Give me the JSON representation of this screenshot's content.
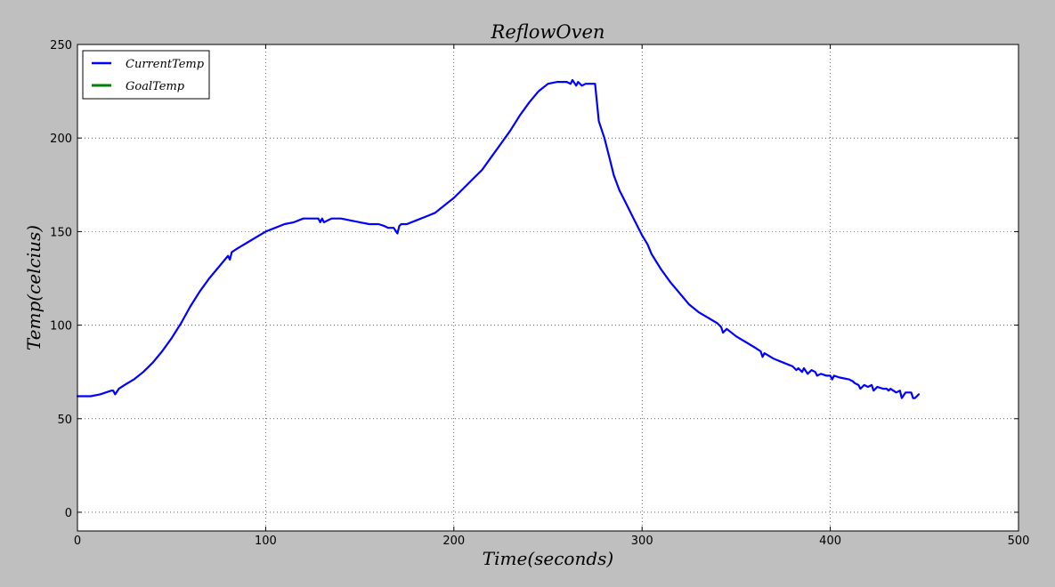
{
  "chart_data": {
    "type": "line",
    "title": "ReflowOven",
    "xlabel": "Time(seconds)",
    "ylabel": "Temp(celcius)",
    "xlim": [
      0,
      500
    ],
    "ylim": [
      -10,
      250
    ],
    "xticks": [
      0,
      100,
      200,
      300,
      400,
      500
    ],
    "yticks": [
      0,
      50,
      100,
      150,
      200,
      250
    ],
    "x_tick_labels": [
      "0",
      "100",
      "200",
      "300",
      "400",
      "500"
    ],
    "y_tick_labels": [
      "0",
      "50",
      "100",
      "150",
      "200",
      "250"
    ],
    "grid": true,
    "legend_position": "top-left",
    "series": [
      {
        "name": "CurrentTemp",
        "color": "#0000ff",
        "x": [
          0,
          5,
          7,
          12,
          15,
          18,
          19,
          20,
          22,
          25,
          30,
          35,
          40,
          45,
          50,
          55,
          60,
          65,
          70,
          75,
          80,
          81,
          82,
          85,
          90,
          95,
          100,
          105,
          110,
          115,
          120,
          125,
          128,
          129,
          130,
          131,
          135,
          140,
          145,
          150,
          155,
          160,
          163,
          165,
          168,
          170,
          171,
          172,
          175,
          180,
          185,
          190,
          195,
          200,
          205,
          210,
          215,
          220,
          225,
          230,
          235,
          240,
          245,
          250,
          255,
          260,
          262,
          263,
          265,
          266,
          268,
          270,
          272,
          275,
          277,
          280,
          283,
          285,
          288,
          290,
          292,
          295,
          300,
          303,
          305,
          310,
          315,
          320,
          325,
          330,
          335,
          340,
          342,
          343,
          345,
          350,
          355,
          360,
          363,
          364,
          365,
          370,
          375,
          380,
          382,
          383,
          385,
          386,
          388,
          390,
          392,
          393,
          395,
          398,
          400,
          401,
          402,
          405,
          410,
          412,
          413,
          415,
          416,
          418,
          420,
          422,
          423,
          425,
          428,
          430,
          431,
          432,
          435,
          437,
          438,
          440,
          443,
          444,
          445,
          447
        ],
        "y": [
          62,
          62,
          62,
          63,
          64,
          65,
          65,
          63,
          66,
          68,
          71,
          75,
          80,
          86,
          93,
          101,
          110,
          118,
          125,
          131,
          137,
          135,
          139,
          141,
          144,
          147,
          150,
          152,
          154,
          155,
          157,
          157,
          157,
          155,
          157,
          155,
          157,
          157,
          156,
          155,
          154,
          154,
          153,
          152,
          152,
          149,
          153,
          154,
          154,
          156,
          158,
          160,
          164,
          168,
          173,
          178,
          183,
          190,
          197,
          204,
          212,
          219,
          225,
          229,
          230,
          230,
          229,
          231,
          228,
          230,
          228,
          229,
          229,
          229,
          209,
          200,
          188,
          180,
          172,
          168,
          164,
          158,
          148,
          143,
          138,
          130,
          123,
          117,
          111,
          107,
          104,
          101,
          99,
          96,
          98,
          94,
          91,
          88,
          86,
          83,
          85,
          82,
          80,
          78,
          76,
          77,
          75,
          77,
          74,
          76,
          75,
          73,
          74,
          73,
          73,
          71,
          73,
          72,
          71,
          70,
          69,
          68,
          66,
          68,
          67,
          68,
          65,
          67,
          66,
          66,
          65,
          66,
          64,
          65,
          61,
          64,
          64,
          61,
          61,
          63
        ]
      },
      {
        "name": "GoalTemp",
        "color": "#008000",
        "x": [],
        "y": []
      }
    ]
  }
}
